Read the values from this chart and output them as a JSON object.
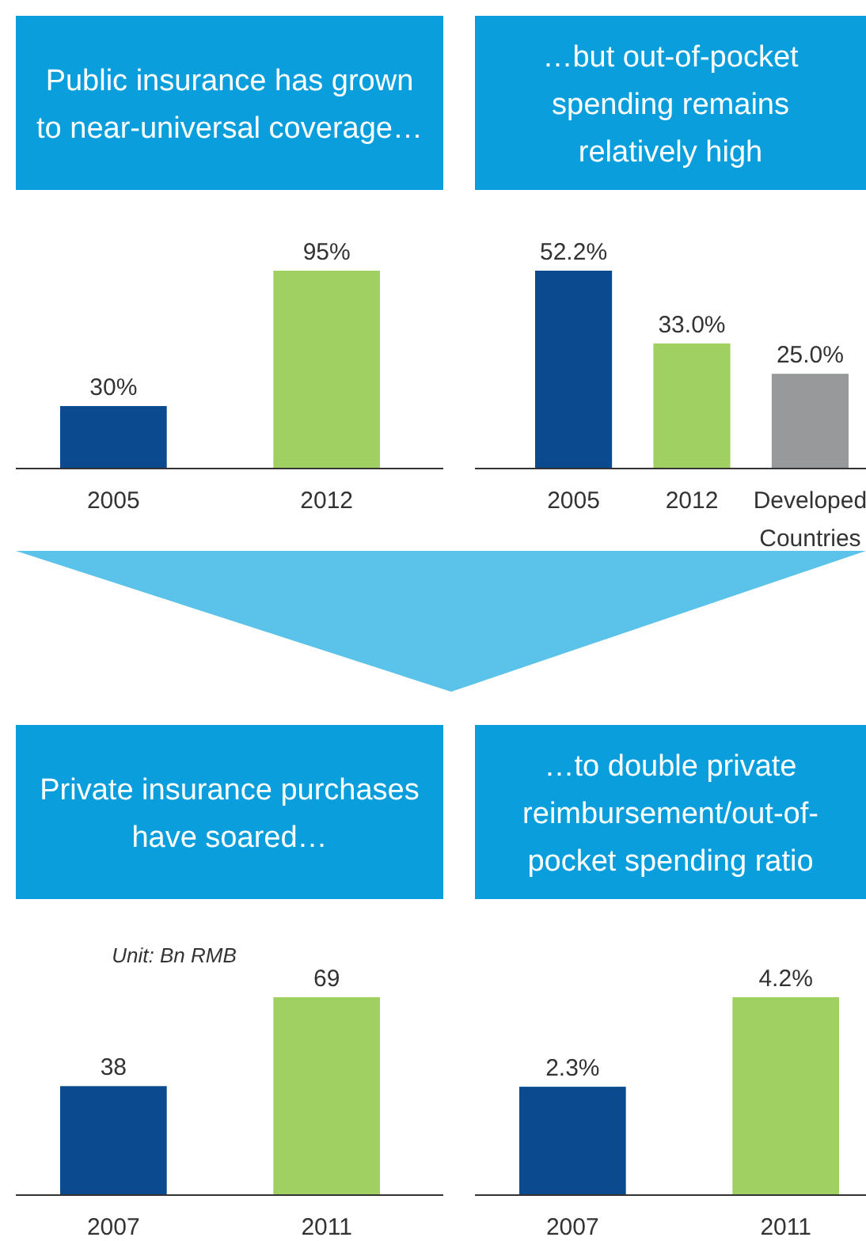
{
  "chart_data": [
    {
      "type": "bar",
      "title": "Public insurance has grown to near-universal coverage…",
      "categories": [
        "2005",
        "2012"
      ],
      "values": [
        30,
        95
      ],
      "value_labels": [
        "30%",
        "95%"
      ],
      "colors": [
        "#0b4a8f",
        "#a0cf62"
      ]
    },
    {
      "type": "bar",
      "title": "…but out-of-pocket spending remains relatively high",
      "categories": [
        "2005",
        "2012",
        "Developed Countries"
      ],
      "values": [
        52.2,
        33.0,
        25.0
      ],
      "value_labels": [
        "52.2%",
        "33.0%",
        "25.0%"
      ],
      "colors": [
        "#0b4a8f",
        "#a0cf62",
        "#97999b"
      ]
    },
    {
      "type": "bar",
      "title": "Private insurance purchases have soared…",
      "subtitle": "Unit: Bn RMB",
      "categories": [
        "2007",
        "2011"
      ],
      "values": [
        38,
        69
      ],
      "value_labels": [
        "38",
        "69"
      ],
      "colors": [
        "#0b4a8f",
        "#a0cf62"
      ]
    },
    {
      "type": "bar",
      "title": "…to double private reimbursement/out-of-pocket spending ratio",
      "categories": [
        "2007",
        "2011"
      ],
      "values": [
        2.3,
        4.2
      ],
      "value_labels": [
        "2.3%",
        "4.2%"
      ],
      "colors": [
        "#0b4a8f",
        "#a0cf62"
      ]
    }
  ]
}
